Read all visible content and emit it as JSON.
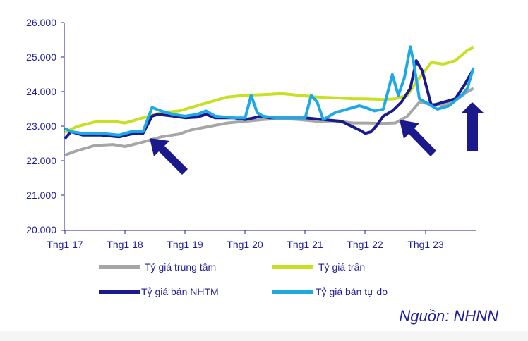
{
  "colors": {
    "axis": "#1f1f9a",
    "background": "#ffffff"
  },
  "source": "Nguồn: NHNN",
  "chart_data": {
    "type": "line",
    "title": "",
    "xlabel": "",
    "ylabel": "",
    "ylim": [
      20000,
      26000
    ],
    "y_ticks": [
      "20.000",
      "21.000",
      "22.000",
      "23.000",
      "24.000",
      "25.000",
      "26.000"
    ],
    "y_tick_values": [
      20000,
      21000,
      22000,
      23000,
      24000,
      25000,
      26000
    ],
    "xlim": [
      2017.0,
      2023.8
    ],
    "x_ticks": [
      "Thg1 17",
      "Thg1 18",
      "Thg1 19",
      "Thg1 20",
      "Thg1 21",
      "Thg1 22",
      "Thg1 23"
    ],
    "x_tick_values": [
      2017,
      2018,
      2019,
      2020,
      2021,
      2022,
      2023
    ],
    "grid": false,
    "legend": "bottom",
    "series": [
      {
        "name": "Tỷ giá trung tâm",
        "color": "#a6a6a6",
        "x": [
          2017.0,
          2017.2,
          2017.5,
          2017.8,
          2018.0,
          2018.3,
          2018.6,
          2018.9,
          2019.1,
          2019.4,
          2019.7,
          2020.0,
          2020.3,
          2020.6,
          2020.9,
          2021.2,
          2021.5,
          2021.8,
          2022.0,
          2022.3,
          2022.5,
          2022.7,
          2022.9,
          2023.1,
          2023.3,
          2023.5,
          2023.7,
          2023.8
        ],
        "values": [
          22170,
          22300,
          22450,
          22480,
          22420,
          22550,
          22700,
          22780,
          22900,
          23000,
          23100,
          23150,
          23200,
          23230,
          23200,
          23150,
          23160,
          23100,
          23100,
          23090,
          23100,
          23300,
          23700,
          23650,
          23600,
          23750,
          24000,
          24100
        ]
      },
      {
        "name": "Tỷ giá trần",
        "color": "#c7e022",
        "x": [
          2017.0,
          2017.2,
          2017.5,
          2017.8,
          2018.0,
          2018.3,
          2018.6,
          2018.9,
          2019.1,
          2019.4,
          2019.7,
          2020.0,
          2020.3,
          2020.6,
          2020.9,
          2021.2,
          2021.5,
          2021.8,
          2022.0,
          2022.3,
          2022.5,
          2022.7,
          2022.9,
          2023.1,
          2023.3,
          2023.5,
          2023.7,
          2023.8
        ],
        "values": [
          22830,
          23000,
          23130,
          23150,
          23100,
          23250,
          23400,
          23450,
          23550,
          23700,
          23850,
          23900,
          23920,
          23950,
          23900,
          23850,
          23830,
          23800,
          23800,
          23780,
          23800,
          23900,
          24400,
          24850,
          24800,
          24900,
          25200,
          25280
        ]
      },
      {
        "name": "Tỷ giá bán NHTM",
        "color": "#1a1a8c",
        "x": [
          2017.0,
          2017.1,
          2017.3,
          2017.6,
          2017.9,
          2018.1,
          2018.3,
          2018.45,
          2018.55,
          2018.8,
          2019.0,
          2019.2,
          2019.35,
          2019.5,
          2019.8,
          2020.0,
          2020.15,
          2020.25,
          2020.4,
          2020.7,
          2021.0,
          2021.3,
          2021.6,
          2021.9,
          2022.0,
          2022.1,
          2022.2,
          2022.3,
          2022.45,
          2022.6,
          2022.75,
          2022.85,
          2022.95,
          2023.1,
          2023.3,
          2023.5,
          2023.65,
          2023.8
        ],
        "values": [
          22650,
          22850,
          22750,
          22750,
          22700,
          22780,
          22800,
          23300,
          23350,
          23300,
          23250,
          23270,
          23350,
          23250,
          23250,
          23200,
          23250,
          23300,
          23250,
          23250,
          23250,
          23200,
          23150,
          22900,
          22800,
          22850,
          23050,
          23300,
          23450,
          23700,
          24100,
          24900,
          24600,
          23600,
          23700,
          23800,
          24200,
          24650
        ]
      },
      {
        "name": "Tỷ giá bán tự do",
        "color": "#1ea9e6",
        "x": [
          2017.0,
          2017.1,
          2017.3,
          2017.6,
          2017.9,
          2018.1,
          2018.3,
          2018.45,
          2018.6,
          2018.8,
          2019.0,
          2019.2,
          2019.35,
          2019.5,
          2019.8,
          2020.0,
          2020.1,
          2020.2,
          2020.3,
          2020.5,
          2020.8,
          2021.0,
          2021.1,
          2021.2,
          2021.3,
          2021.5,
          2021.7,
          2021.9,
          2022.0,
          2022.15,
          2022.3,
          2022.45,
          2022.55,
          2022.65,
          2022.75,
          2022.8,
          2022.9,
          2023.0,
          2023.2,
          2023.4,
          2023.6,
          2023.7,
          2023.8
        ],
        "values": [
          22950,
          22850,
          22800,
          22800,
          22750,
          22850,
          22850,
          23550,
          23450,
          23350,
          23300,
          23350,
          23450,
          23300,
          23250,
          23250,
          23900,
          23400,
          23300,
          23250,
          23250,
          23250,
          23900,
          23700,
          23200,
          23400,
          23500,
          23600,
          23550,
          23450,
          23500,
          24500,
          23900,
          24400,
          25300,
          24900,
          23800,
          23700,
          23500,
          23600,
          23900,
          24100,
          24700
        ]
      }
    ]
  }
}
